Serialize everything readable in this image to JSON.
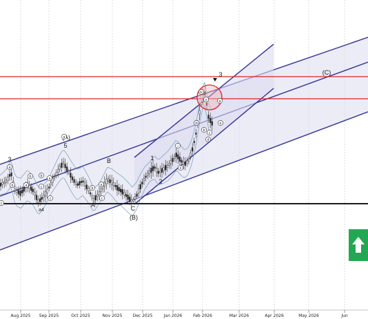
{
  "chart_data": {
    "type": "line",
    "title": "",
    "xlabel": "",
    "ylabel": "",
    "x_axis_ticks": [
      "Aug 2025",
      "Sep 2025",
      "Oct 2025",
      "Nov 2025",
      "Dec 2025",
      "Jan 2026",
      "Feb 2026",
      "Mar 2026",
      "Apr 2026",
      "May 2026",
      "Jun"
    ],
    "grid": "vertical-dashed",
    "legend": "none",
    "series": [
      {
        "values": []
      }
    ],
    "wave_labels": {
      "major": [
        "3",
        "(A)",
        "5",
        "B",
        "A",
        "C",
        "(B)",
        "1",
        "2",
        "3",
        "(C)"
      ],
      "minor_circled": [
        "a",
        "b",
        "c",
        "a",
        "b",
        "c",
        "a",
        "b",
        "c",
        "i",
        "ii",
        "iii",
        "iv",
        "v",
        "a",
        "b",
        "c",
        "d",
        "e"
      ],
      "a4": "a4"
    },
    "colors": {
      "channel_line": "#3b3b9c",
      "channel_fill": "#dcdcf0",
      "resistance": "#e02020",
      "support": "#1a1a1a",
      "bollinger": "#7ea6b8",
      "candle": "#2a2a2a",
      "signal": "#22a852"
    }
  },
  "signal": {
    "icon": "arrow-up-icon",
    "color": "#22a852"
  }
}
